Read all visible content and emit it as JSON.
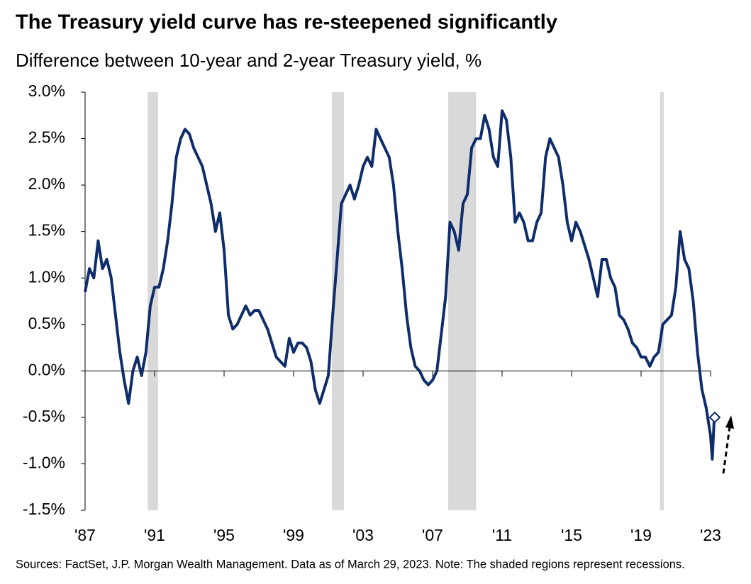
{
  "chart_data": {
    "type": "line",
    "title": "The Treasury yield curve has re-steepened significantly",
    "subtitle": "Difference between 10-year and 2-year Treasury yield, %",
    "footnote": "Sources: FactSet, J.P. Morgan Wealth Management. Data as of March 29, 2023. Note: The shaded regions represent recessions.",
    "xlim": [
      1987,
      2023
    ],
    "xticks": [
      {
        "value": 1987,
        "label": "'87"
      },
      {
        "value": 1991,
        "label": "'91"
      },
      {
        "value": 1995,
        "label": "'95"
      },
      {
        "value": 1999,
        "label": "'99"
      },
      {
        "value": 2003,
        "label": "'03"
      },
      {
        "value": 2007,
        "label": "'07"
      },
      {
        "value": 2011,
        "label": "'11"
      },
      {
        "value": 2015,
        "label": "'15"
      },
      {
        "value": 2019,
        "label": "'19"
      },
      {
        "value": 2023,
        "label": "'23"
      }
    ],
    "ylim": [
      -1.5,
      3
    ],
    "yticks": [
      {
        "value": 3,
        "label": "3.0%"
      },
      {
        "value": 2.5,
        "label": "2.5%"
      },
      {
        "value": 2,
        "label": "2.0%"
      },
      {
        "value": 1.5,
        "label": "1.5%"
      },
      {
        "value": 1,
        "label": "1.0%"
      },
      {
        "value": 0.5,
        "label": "0.5%"
      },
      {
        "value": 0,
        "label": "0.0%"
      },
      {
        "value": -0.5,
        "label": "-0.5%"
      },
      {
        "value": -1,
        "label": "-1.0%"
      },
      {
        "value": -1.5,
        "label": "-1.5%"
      }
    ],
    "recessions": [
      [
        1990.6,
        1991.2
      ],
      [
        2001.2,
        2001.9
      ],
      [
        2007.9,
        2009.5
      ],
      [
        2020.1,
        2020.3
      ]
    ],
    "recession_color": "#d9d9d9",
    "x": [
      1987.0,
      1987.25,
      1987.5,
      1987.75,
      1988.0,
      1988.25,
      1988.5,
      1988.75,
      1989.0,
      1989.25,
      1989.5,
      1989.75,
      1990.0,
      1990.25,
      1990.5,
      1990.75,
      1991.0,
      1991.25,
      1991.5,
      1991.75,
      1992.0,
      1992.25,
      1992.5,
      1992.75,
      1993.0,
      1993.25,
      1993.5,
      1993.75,
      1994.0,
      1994.25,
      1994.5,
      1994.75,
      1995.0,
      1995.25,
      1995.5,
      1995.75,
      1996.0,
      1996.25,
      1996.5,
      1996.75,
      1997.0,
      1997.25,
      1997.5,
      1997.75,
      1998.0,
      1998.25,
      1998.5,
      1998.75,
      1999.0,
      1999.25,
      1999.5,
      1999.75,
      2000.0,
      2000.25,
      2000.5,
      2000.75,
      2001.0,
      2001.25,
      2001.5,
      2001.75,
      2002.0,
      2002.25,
      2002.5,
      2002.75,
      2003.0,
      2003.25,
      2003.5,
      2003.75,
      2004.0,
      2004.25,
      2004.5,
      2004.75,
      2005.0,
      2005.25,
      2005.5,
      2005.75,
      2006.0,
      2006.25,
      2006.5,
      2006.75,
      2007.0,
      2007.25,
      2007.5,
      2007.75,
      2008.0,
      2008.25,
      2008.5,
      2008.75,
      2009.0,
      2009.25,
      2009.5,
      2009.75,
      2010.0,
      2010.25,
      2010.5,
      2010.75,
      2011.0,
      2011.25,
      2011.5,
      2011.75,
      2012.0,
      2012.25,
      2012.5,
      2012.75,
      2013.0,
      2013.25,
      2013.5,
      2013.75,
      2014.0,
      2014.25,
      2014.5,
      2014.75,
      2015.0,
      2015.25,
      2015.5,
      2015.75,
      2016.0,
      2016.25,
      2016.5,
      2016.75,
      2017.0,
      2017.25,
      2017.5,
      2017.75,
      2018.0,
      2018.25,
      2018.5,
      2018.75,
      2019.0,
      2019.25,
      2019.5,
      2019.75,
      2020.0,
      2020.25,
      2020.5,
      2020.75,
      2021.0,
      2021.25,
      2021.5,
      2021.75,
      2022.0,
      2022.25,
      2022.5,
      2022.75,
      2023.0,
      2023.1,
      2023.2,
      2023.24
    ],
    "series": [
      {
        "name": "10-year minus 2-year",
        "color": "#0f2d6b",
        "values": [
          0.85,
          1.1,
          1.0,
          1.4,
          1.1,
          1.2,
          1.0,
          0.6,
          0.2,
          -0.1,
          -0.35,
          0.0,
          0.15,
          -0.05,
          0.2,
          0.7,
          0.9,
          0.9,
          1.1,
          1.4,
          1.8,
          2.3,
          2.5,
          2.6,
          2.55,
          2.4,
          2.3,
          2.2,
          2.0,
          1.8,
          1.5,
          1.7,
          1.3,
          0.6,
          0.45,
          0.5,
          0.6,
          0.7,
          0.6,
          0.65,
          0.65,
          0.55,
          0.45,
          0.3,
          0.15,
          0.1,
          0.05,
          0.35,
          0.2,
          0.3,
          0.3,
          0.25,
          0.1,
          -0.2,
          -0.35,
          -0.2,
          -0.05,
          0.6,
          1.2,
          1.8,
          1.9,
          2.0,
          1.85,
          2.0,
          2.2,
          2.3,
          2.2,
          2.6,
          2.5,
          2.4,
          2.3,
          2.0,
          1.5,
          1.1,
          0.6,
          0.25,
          0.05,
          0.0,
          -0.1,
          -0.15,
          -0.1,
          0.0,
          0.4,
          0.8,
          1.6,
          1.5,
          1.3,
          1.8,
          1.9,
          2.4,
          2.5,
          2.5,
          2.75,
          2.6,
          2.3,
          2.2,
          2.8,
          2.7,
          2.3,
          1.6,
          1.7,
          1.6,
          1.4,
          1.4,
          1.6,
          1.7,
          2.3,
          2.5,
          2.4,
          2.3,
          2.0,
          1.6,
          1.4,
          1.6,
          1.5,
          1.35,
          1.2,
          1.0,
          0.8,
          1.2,
          1.2,
          1.0,
          0.9,
          0.6,
          0.55,
          0.45,
          0.3,
          0.25,
          0.15,
          0.15,
          0.05,
          0.15,
          0.2,
          0.5,
          0.55,
          0.6,
          0.9,
          1.5,
          1.2,
          1.1,
          0.75,
          0.2,
          -0.2,
          -0.4,
          -0.7,
          -0.95,
          -0.55,
          -0.5
        ]
      }
    ],
    "marker": {
      "x": 2023.24,
      "value": -0.5
    }
  }
}
